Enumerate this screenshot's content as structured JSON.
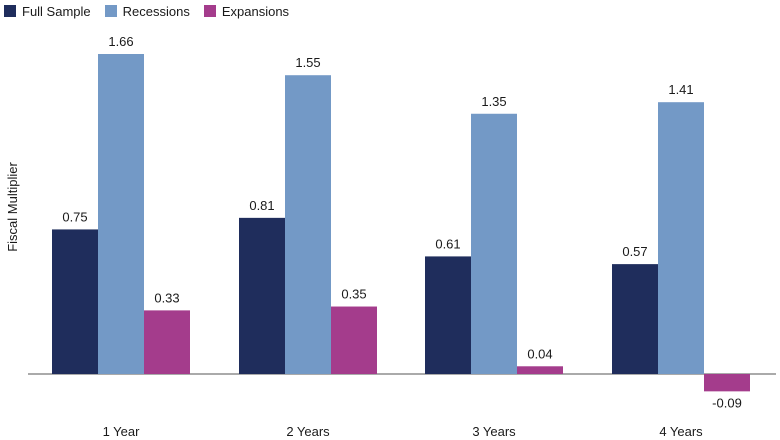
{
  "chart_data": {
    "type": "bar",
    "categories": [
      "1 Year",
      "2 Years",
      "3 Years",
      "4 Years"
    ],
    "series": [
      {
        "name": "Full Sample",
        "color": "#1f2d5c",
        "values": [
          0.75,
          0.81,
          0.61,
          0.57
        ],
        "labels": [
          "0.75",
          "0.81",
          "0.61",
          "0.57"
        ]
      },
      {
        "name": "Recessions",
        "color": "#7399c6",
        "values": [
          1.66,
          1.55,
          1.35,
          1.41
        ],
        "labels": [
          "1.66",
          "1.55",
          "1.35",
          "1.41"
        ]
      },
      {
        "name": "Expansions",
        "color": "#a43c8c",
        "values": [
          0.33,
          0.35,
          0.04,
          -0.09
        ],
        "labels": [
          "0.33",
          "0.35",
          "0.04",
          "-0.09"
        ]
      }
    ],
    "xlabel": "",
    "ylabel": "Fiscal Multiplier",
    "ylim": [
      -0.2,
      1.8
    ],
    "grid": false,
    "legend_position": "top-left",
    "baseline_color": "#555555"
  }
}
